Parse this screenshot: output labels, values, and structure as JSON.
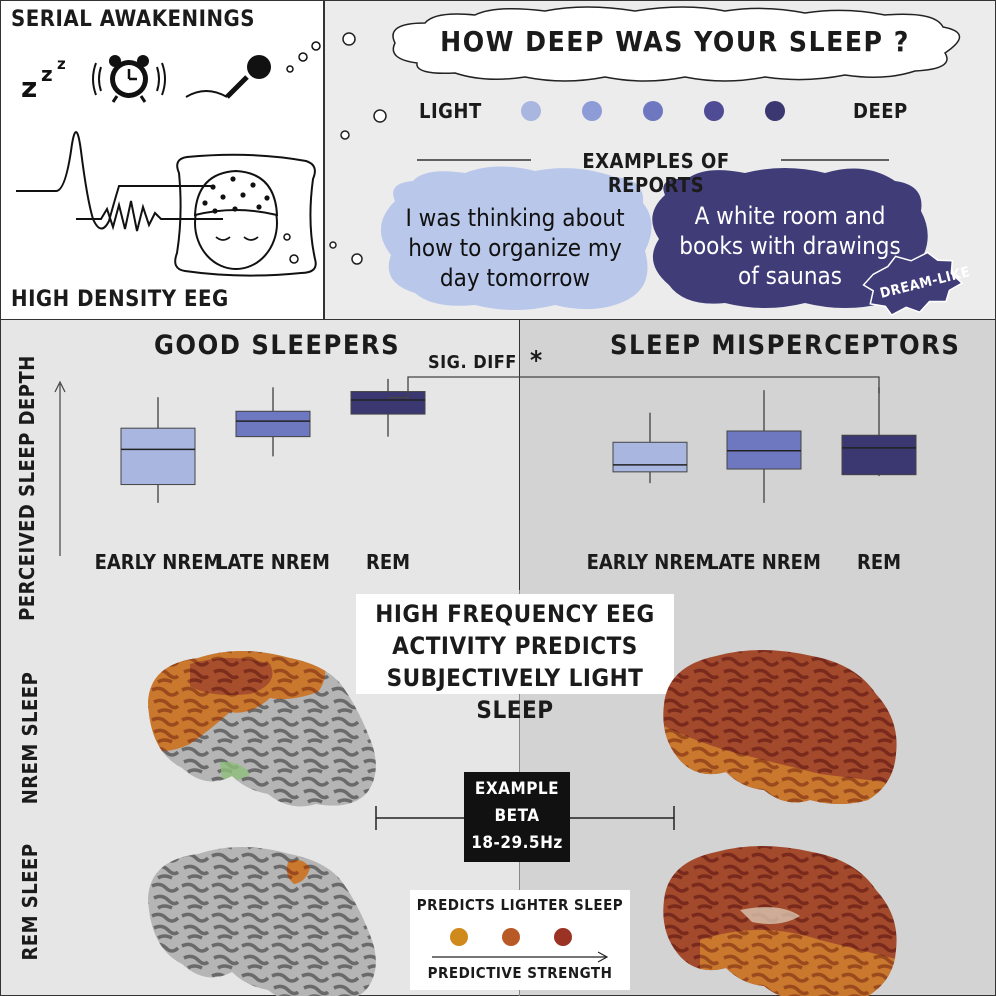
{
  "top_left": {
    "title": "SERIAL AWAKENINGS",
    "zzz": "zzz",
    "footer": "HIGH DENSITY EEG"
  },
  "top_right": {
    "question": "HOW DEEP WAS YOUR SLEEP ?",
    "scale_left": "LIGHT",
    "scale_right": "DEEP",
    "scale_colors": [
      "#a9b6e0",
      "#8d9cd6",
      "#6d78c0",
      "#4f4b95",
      "#3b3770"
    ],
    "examples_label": "EXAMPLES OF REPORTS",
    "report_light": [
      "I was thinking about",
      "how to organize my",
      "day tomorrow"
    ],
    "report_deep": [
      "A white room and",
      "books with drawings",
      "of saunas"
    ],
    "dream_tag": "DREAM-LIKE"
  },
  "y_axis_label": "PERCEIVED SLEEP DEPTH",
  "groups": {
    "left_title": "GOOD SLEEPERS",
    "right_title": "SLEEP MISPERCEPTORS",
    "sig_label": "SIG. DIFF",
    "sig_star": "*"
  },
  "chart_data": {
    "type": "box",
    "ylabel": "PERCEIVED SLEEP DEPTH",
    "categories": [
      "EARLY NREM",
      "LATE NREM",
      "REM"
    ],
    "series": [
      {
        "name": "GOOD SLEEPERS",
        "boxes": [
          {
            "min": 1.5,
            "q1": 2.8,
            "median": 5.3,
            "q3": 6.8,
            "max": 9.0
          },
          {
            "min": 4.8,
            "q1": 6.2,
            "median": 7.3,
            "q3": 8.0,
            "max": 9.7
          },
          {
            "min": 6.2,
            "q1": 7.8,
            "median": 8.8,
            "q3": 9.4,
            "max": 10.3
          }
        ]
      },
      {
        "name": "SLEEP MISPERCEPTORS",
        "boxes": [
          {
            "min": 2.9,
            "q1": 3.7,
            "median": 4.2,
            "q3": 5.8,
            "max": 7.9
          },
          {
            "min": 1.5,
            "q1": 3.9,
            "median": 5.2,
            "q3": 6.6,
            "max": 9.5
          },
          {
            "min": 3.4,
            "q1": 3.5,
            "median": 5.4,
            "q3": 6.3,
            "max": 9.7
          }
        ]
      }
    ],
    "colors": [
      "#a9b6e0",
      "#6d78c0",
      "#3b3770"
    ],
    "ylim": [
      0,
      11
    ]
  },
  "bottom": {
    "headline": [
      "HIGH FREQUENCY EEG",
      "ACTIVITY PREDICTS",
      "SUBJECTIVELY LIGHT SLEEP"
    ],
    "row_top_label": "NREM SLEEP",
    "row_bottom_label": "REM SLEEP",
    "example_box": [
      "EXAMPLE",
      "BETA",
      "18-29.5Hz"
    ],
    "legend_title": "PREDICTS LIGHTER SLEEP",
    "legend_colors": [
      "#d08a1c",
      "#b85a26",
      "#9a3324"
    ],
    "legend_axis": "PREDICTIVE STRENGTH"
  }
}
